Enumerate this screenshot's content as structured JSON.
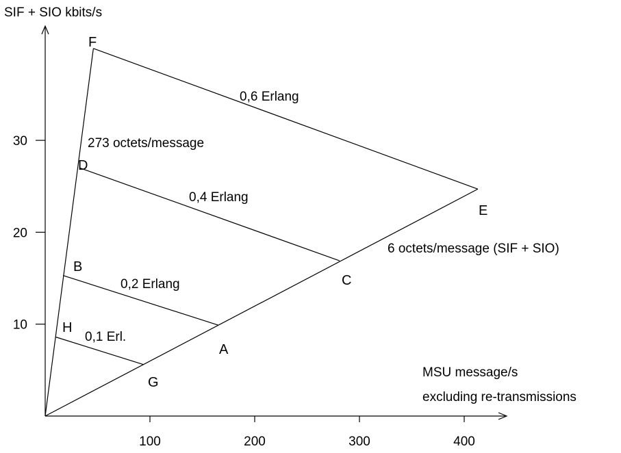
{
  "chart_data": {
    "type": "line",
    "title": "",
    "ylabel": "SIF + SIO kbits/s",
    "xlabel_lines": [
      "MSU message/s",
      "excluding re-transmissions"
    ],
    "xlim": [
      0,
      440
    ],
    "ylim": [
      0,
      42
    ],
    "xticks": [
      100,
      200,
      300,
      400
    ],
    "yticks": [
      10,
      20,
      30
    ],
    "points": [
      {
        "id": "F",
        "label": "F",
        "x": 46,
        "y": 40.0
      },
      {
        "id": "D",
        "label": "D",
        "x": 33,
        "y": 27.0
      },
      {
        "id": "B",
        "label": "B",
        "x": 17,
        "y": 15.3
      },
      {
        "id": "H",
        "label": "H",
        "x": 10,
        "y": 8.6
      },
      {
        "id": "E",
        "label": "E",
        "x": 413,
        "y": 24.7
      },
      {
        "id": "C",
        "label": "C",
        "x": 281,
        "y": 16.9
      },
      {
        "id": "A",
        "label": "A",
        "x": 165,
        "y": 9.9
      },
      {
        "id": "G",
        "label": "G",
        "x": 94,
        "y": 5.6
      }
    ],
    "segments": [
      {
        "id": "erl06",
        "from": "F",
        "to": "E",
        "label": "0,6 Erlang"
      },
      {
        "id": "erl04",
        "from": "D",
        "to": "C",
        "label": "0,4 Erlang"
      },
      {
        "id": "erl02",
        "from": "B",
        "to": "A",
        "label": "0,2 Erlang"
      },
      {
        "id": "erl01",
        "from": "H",
        "to": "G",
        "label": "0,1 Erl."
      }
    ],
    "boundaries": [
      {
        "id": "max-length",
        "from": [
          0,
          0
        ],
        "to": "F",
        "label": "273 octets/message"
      },
      {
        "id": "min-length",
        "from": [
          0,
          0
        ],
        "to": "E",
        "label": "6 octets/message (SIF + SIO)"
      }
    ],
    "colors": {
      "line": "#000000",
      "text": "#000000",
      "background": "#ffffff"
    }
  }
}
